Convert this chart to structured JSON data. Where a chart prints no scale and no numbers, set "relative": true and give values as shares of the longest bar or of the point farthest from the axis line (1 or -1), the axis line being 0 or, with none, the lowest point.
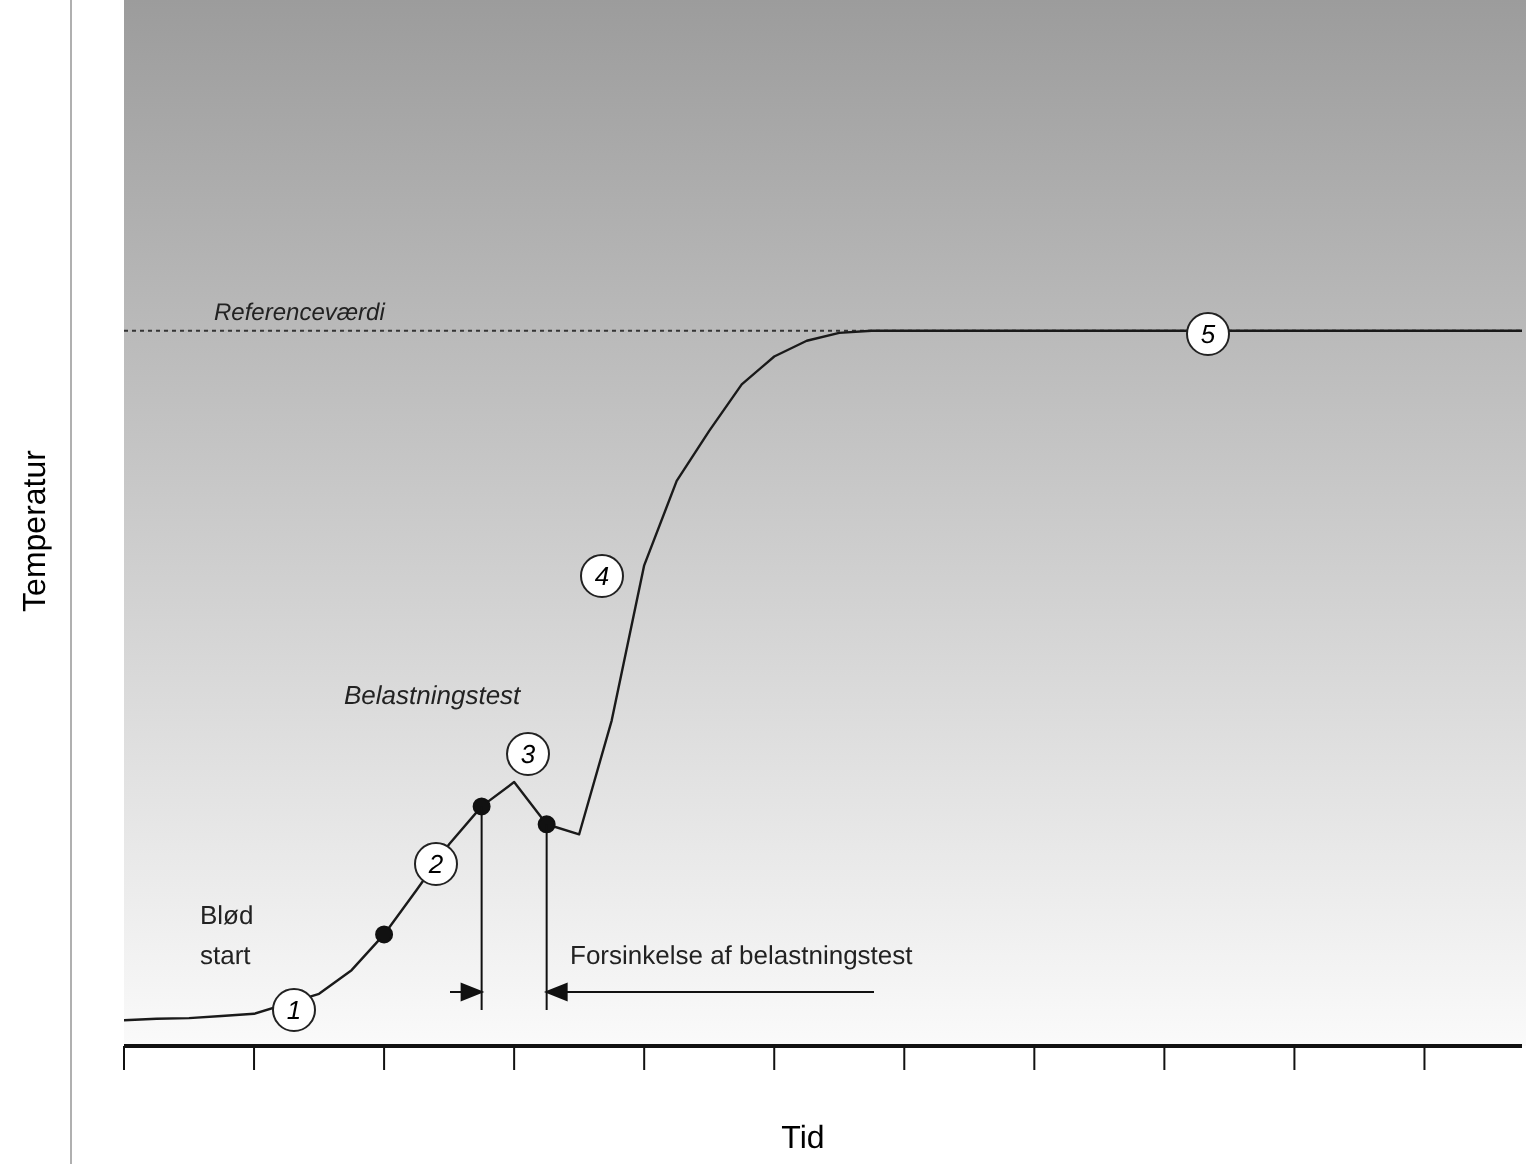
{
  "chart_data": {
    "type": "line",
    "xlabel": "Tid",
    "ylabel": "Temperatur",
    "relative": true,
    "categories": [
      null,
      null,
      null,
      null,
      null,
      null,
      null,
      null,
      null,
      null,
      null,
      null,
      null,
      null,
      null,
      null,
      null,
      null,
      null,
      null,
      null,
      null,
      null,
      null,
      null,
      null,
      null,
      null,
      null,
      null,
      null,
      null,
      null,
      null,
      null,
      null,
      null,
      null,
      null,
      null,
      null,
      null,
      null,
      null
    ],
    "series": [
      {
        "color": "#1a1a1a",
        "values": [
          0.036,
          0.038,
          0.039,
          0.042,
          0.045,
          null,
          0.073,
          0.106,
          0.156,
          0.218,
          0.282,
          0.335,
          0.369,
          0.31,
          0.296,
          0.455,
          0.672,
          0.79,
          0.86,
          0.925,
          0.964,
          0.986,
          0.997,
          1,
          1,
          1,
          1,
          1,
          1,
          1,
          1,
          1,
          1,
          null,
          1,
          1,
          1,
          1,
          1,
          1,
          1,
          1,
          1,
          1
        ]
      }
    ],
    "marker": "none",
    "line_style": "solid",
    "ref_lines": [
      {
        "axis": "y",
        "value": 1,
        "label": "Referenceværdi",
        "line_style": "dotted",
        "color": "#333333"
      }
    ],
    "annotations": [
      "Blød start",
      "Belastningstest",
      "Forsinkelse af belastningstest",
      "1",
      "2",
      "3",
      "4",
      "5"
    ]
  }
}
